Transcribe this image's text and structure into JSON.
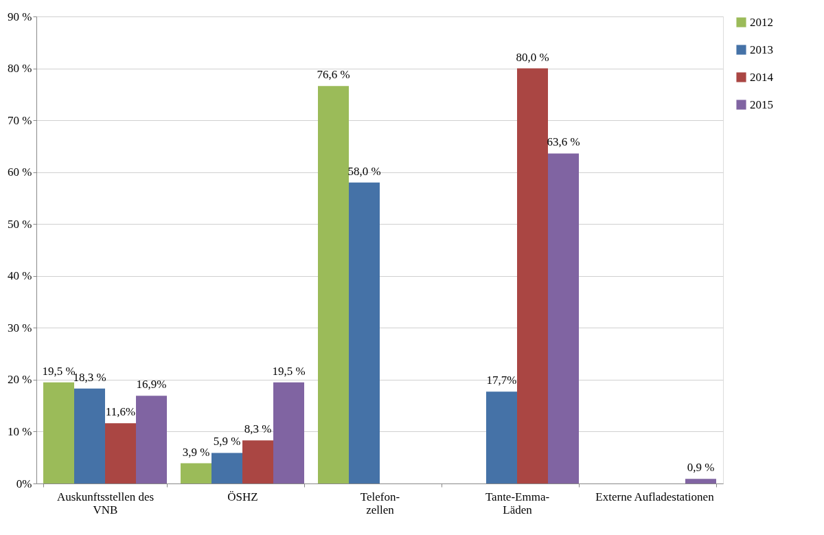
{
  "chart_data": {
    "type": "bar",
    "categories": [
      "Auskunftsstellen des\nVNB",
      "ÖSHZ",
      "Telefon-\nzellen",
      "Tante-Emma-\nLäden",
      "Externe Aufladestationen"
    ],
    "series": [
      {
        "name": "2012",
        "color": "#9bbb59",
        "values": [
          19.5,
          3.9,
          76.6,
          null,
          null
        ],
        "value_labels": [
          "19,5 %",
          "3,9 %",
          "76,6 %",
          null,
          null
        ]
      },
      {
        "name": "2013",
        "color": "#4572a7",
        "values": [
          18.3,
          5.9,
          58.0,
          17.7,
          null
        ],
        "value_labels": [
          "18,3 %",
          "5,9 %",
          "58,0 %",
          "17,7%",
          null
        ]
      },
      {
        "name": "2014",
        "color": "#aa4643",
        "values": [
          11.6,
          8.3,
          null,
          80.0,
          null
        ],
        "value_labels": [
          "11,6%",
          "8,3 %",
          null,
          "80,0 %",
          null
        ]
      },
      {
        "name": "2015",
        "color": "#8064a2",
        "values": [
          16.9,
          19.5,
          null,
          63.6,
          0.9
        ],
        "value_labels": [
          "16,9%",
          "19,5 %",
          null,
          "63,6 %",
          "0,9 %"
        ]
      }
    ],
    "ylim": [
      0,
      90
    ],
    "yticks": [
      {
        "value": 0,
        "label": "0%"
      },
      {
        "value": 10,
        "label": "10 %"
      },
      {
        "value": 20,
        "label": "20 %"
      },
      {
        "value": 30,
        "label": "30 %"
      },
      {
        "value": 40,
        "label": "40 %"
      },
      {
        "value": 50,
        "label": "50 %"
      },
      {
        "value": 60,
        "label": "60 %"
      },
      {
        "value": 70,
        "label": "70 %"
      },
      {
        "value": 80,
        "label": "80 %"
      },
      {
        "value": 90,
        "label": "90 %"
      }
    ],
    "grid": "y",
    "legend": "right"
  }
}
